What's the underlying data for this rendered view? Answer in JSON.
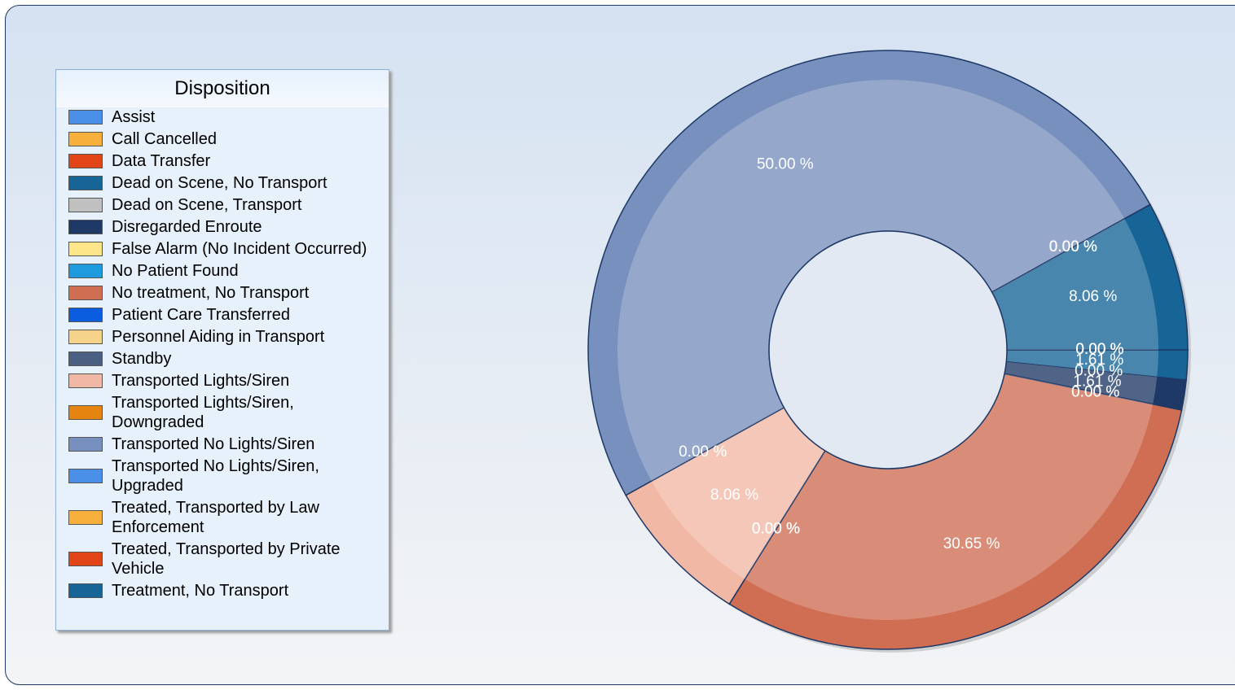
{
  "chart_data": {
    "type": "donut",
    "legend_title": "Disposition",
    "categories": [
      "Assist",
      "Call Cancelled",
      "Data Transfer",
      "Dead on Scene, No Transport",
      "Dead on Scene, Transport",
      "Disregarded Enroute",
      "False Alarm (No Incident Occurred)",
      "No Patient Found",
      "No treatment, No Transport",
      "Patient Care Transferred",
      "Personnel Aiding in Transport",
      "Standby",
      "Transported Lights/Siren",
      "Transported Lights/Siren, Downgraded",
      "Transported No Lights/Siren",
      "Transported No Lights/Siren, Upgraded",
      "Treated, Transported by Law Enforcement",
      "Treated, Transported by Private Vehicle",
      "Treatment, No Transport"
    ],
    "values": [
      0,
      0,
      0,
      1.61,
      0,
      1.61,
      0,
      0,
      30.65,
      0,
      0,
      0,
      8.06,
      0,
      50,
      0,
      0,
      0,
      8.06
    ],
    "value_labels": [
      "0.00 %",
      "0.00 %",
      "0.00 %",
      "1.61 %",
      "0.00 %",
      "1.61 %",
      "0.00 %",
      "0.00 %",
      "30.65 %",
      "0.00 %",
      "0.00 %",
      "0.00 %",
      "8.06 %",
      "0.00 %",
      "50.00 %",
      "0.00 %",
      "0.00 %",
      "0.00 %",
      "8.06 %"
    ],
    "colors": [
      "#4a8fe8",
      "#f7b03c",
      "#e04417",
      "#176596",
      "#c0c0c0",
      "#1e3966",
      "#fde58a",
      "#1e9bde",
      "#cf6e52",
      "#0a5ddf",
      "#f5d38a",
      "#4a5f82",
      "#f2b8a6",
      "#e5840f",
      "#7890bd",
      "#4a8fe8",
      "#f7b03c",
      "#e04417",
      "#176596"
    ]
  }
}
